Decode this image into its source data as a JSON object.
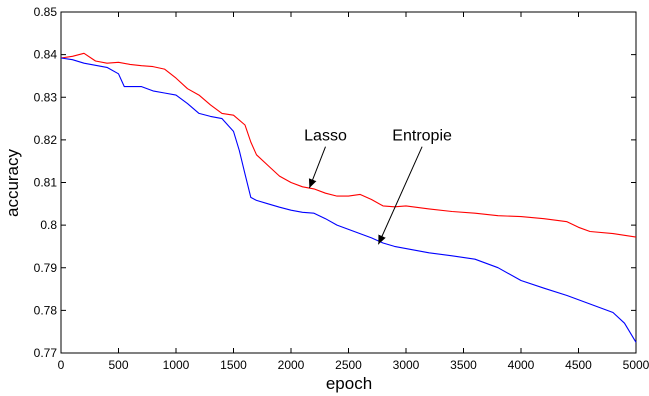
{
  "chart_data": {
    "type": "line",
    "title": "",
    "xlabel": "epoch",
    "ylabel": "accuracy",
    "xlim": [
      0,
      5000
    ],
    "ylim": [
      0.77,
      0.85
    ],
    "xticks": [
      0,
      500,
      1000,
      1500,
      2000,
      2500,
      3000,
      3500,
      4000,
      4500,
      5000
    ],
    "xtick_labels": [
      "0",
      "500",
      "1000",
      "1500",
      "2000",
      "2500",
      "3000",
      "3500",
      "4000",
      "4500",
      "5000"
    ],
    "yticks": [
      0.77,
      0.78,
      0.79,
      0.8,
      0.81,
      0.82,
      0.83,
      0.84,
      0.85
    ],
    "ytick_labels": [
      "0.77",
      "0.78",
      "0.79",
      "0.8",
      "0.81",
      "0.82",
      "0.83",
      "0.84",
      "0.85"
    ],
    "grid": false,
    "legend": "none",
    "series": [
      {
        "color": "#ff0000",
        "x": [
          0,
          100,
          200,
          300,
          400,
          500,
          600,
          700,
          800,
          900,
          1000,
          1100,
          1200,
          1300,
          1400,
          1500,
          1600,
          1650,
          1700,
          1800,
          1900,
          2000,
          2100,
          2200,
          2300,
          2400,
          2500,
          2600,
          2700,
          2800,
          2900,
          3000,
          3200,
          3400,
          3600,
          3800,
          4000,
          4200,
          4400,
          4500,
          4600,
          4800,
          5000
        ],
        "y": [
          0.8392,
          0.8396,
          0.8403,
          0.8385,
          0.838,
          0.8382,
          0.8377,
          0.8374,
          0.8372,
          0.8366,
          0.8345,
          0.832,
          0.8305,
          0.8282,
          0.8262,
          0.8258,
          0.8235,
          0.8195,
          0.8165,
          0.814,
          0.8115,
          0.81,
          0.809,
          0.8085,
          0.8075,
          0.8068,
          0.8068,
          0.8072,
          0.806,
          0.8045,
          0.8043,
          0.8045,
          0.8038,
          0.8032,
          0.8028,
          0.8022,
          0.802,
          0.8015,
          0.8008,
          0.7995,
          0.7985,
          0.798,
          0.7972
        ]
      },
      {
        "color": "#0000ff",
        "x": [
          0,
          100,
          200,
          300,
          400,
          500,
          550,
          600,
          700,
          800,
          900,
          1000,
          1100,
          1200,
          1300,
          1400,
          1500,
          1550,
          1600,
          1650,
          1700,
          1800,
          1900,
          2000,
          2100,
          2200,
          2300,
          2400,
          2500,
          2600,
          2700,
          2800,
          2900,
          3000,
          3200,
          3400,
          3600,
          3800,
          4000,
          4200,
          4400,
          4600,
          4800,
          4900,
          5000
        ],
        "y": [
          0.8392,
          0.8388,
          0.838,
          0.8375,
          0.837,
          0.8355,
          0.8325,
          0.8325,
          0.8325,
          0.8315,
          0.831,
          0.8305,
          0.8285,
          0.8262,
          0.8255,
          0.825,
          0.822,
          0.8175,
          0.812,
          0.8065,
          0.8058,
          0.805,
          0.8042,
          0.8035,
          0.803,
          0.8028,
          0.8015,
          0.8,
          0.799,
          0.798,
          0.797,
          0.7958,
          0.795,
          0.7945,
          0.7935,
          0.7928,
          0.792,
          0.79,
          0.787,
          0.7852,
          0.7835,
          0.7815,
          0.7795,
          0.777,
          0.7725
        ]
      }
    ],
    "annotations": [
      {
        "text": "Lasso",
        "x": 2300,
        "y": 0.8198,
        "arrow_to": [
          2160,
          0.8087
        ]
      },
      {
        "text": "Entropie",
        "x": 3140,
        "y": 0.8198,
        "arrow_to": [
          2760,
          0.7955
        ]
      }
    ]
  }
}
